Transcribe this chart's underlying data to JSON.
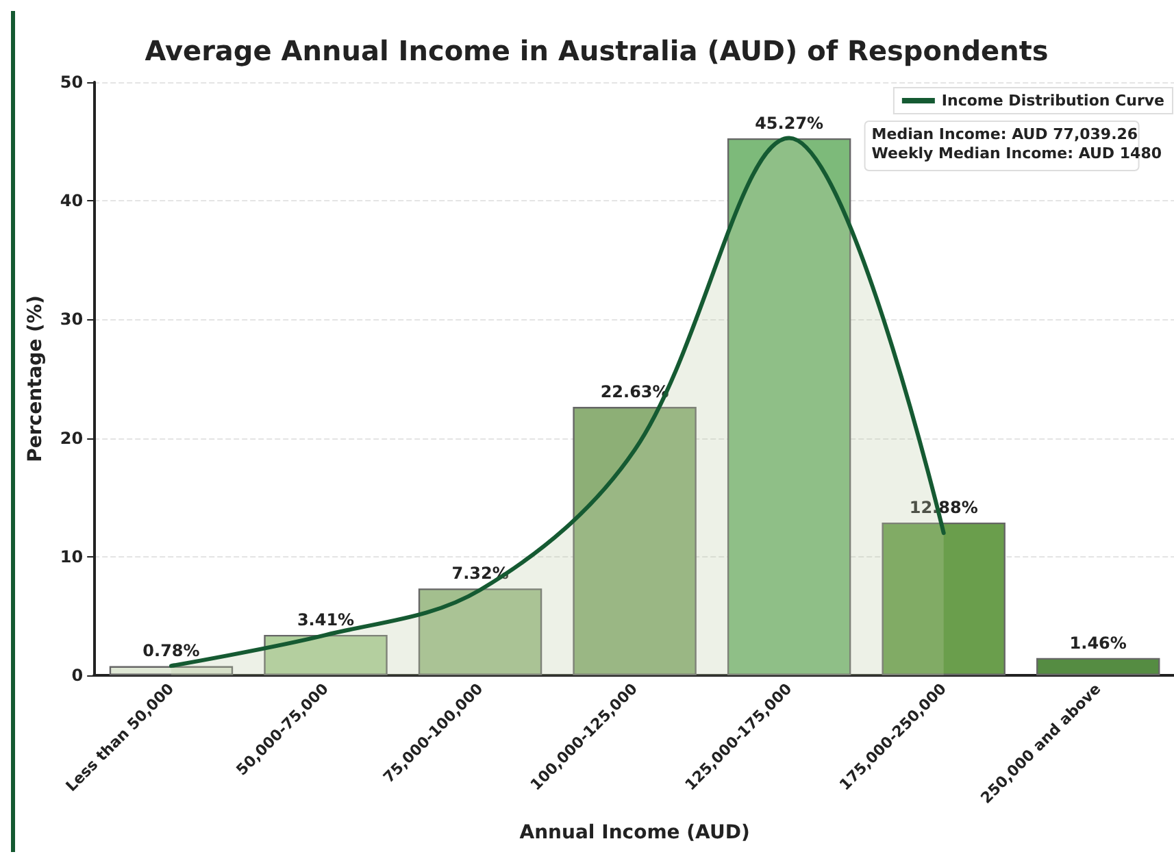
{
  "chart_data": {
    "type": "bar",
    "title": "Average Annual Income in Australia (AUD) of Respondents",
    "xlabel": "Annual Income (AUD)",
    "ylabel": "Percentage (%)",
    "categories": [
      "Less than 50,000",
      "50,000-75,000",
      "75,000-100,000",
      "100,000-125,000",
      "125,000-175,000",
      "175,000-250,000",
      "250,000 and above"
    ],
    "series": [
      {
        "values": [
          0.78,
          3.41,
          7.32,
          22.63,
          45.27,
          12.88,
          1.46
        ],
        "value_labels": [
          "0.78%",
          "3.41%",
          "7.32%",
          "22.63%",
          "45.27%",
          "12.88%",
          "1.46%"
        ],
        "colors": [
          "#dfe8d5",
          "#b0d09c",
          "#a3bf8e",
          "#8daf76",
          "#7dba7a",
          "#6a9e4c",
          "#558c42"
        ]
      },
      {
        "type": "area",
        "name": "Income Distribution Curve",
        "color": "#155a32",
        "values": [
          0.8,
          3.4,
          7.2,
          19,
          45.3,
          12,
          null
        ]
      }
    ],
    "ylim": [
      0,
      50
    ],
    "yticks": [
      0,
      10,
      20,
      30,
      40,
      50
    ],
    "grid": "y",
    "legend": "top right",
    "annotations": [
      "Median Income: AUD 77,039.26",
      "Weekly Median Income: AUD 1480"
    ]
  }
}
